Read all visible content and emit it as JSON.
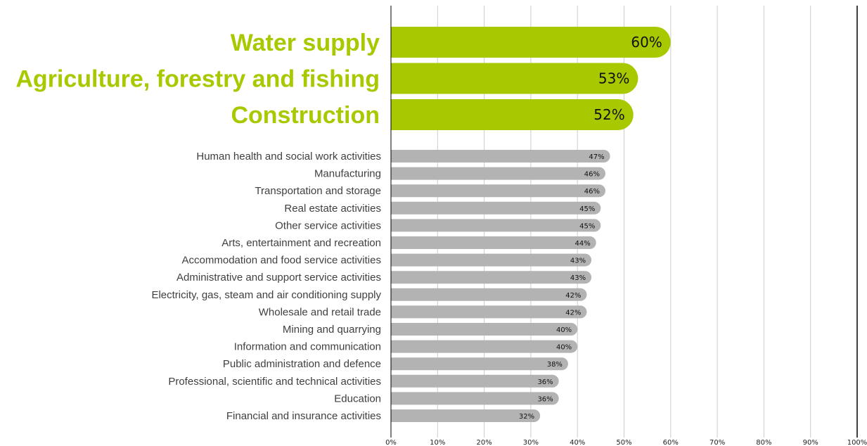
{
  "chart_data": {
    "type": "bar",
    "orientation": "horizontal",
    "x_range": [
      0,
      100
    ],
    "x_unit": "%",
    "grid": true,
    "colors": {
      "highlight": "#a8c800",
      "normal": "#b3b3b3",
      "grid": "#cccccc",
      "axis": "#000000"
    },
    "x_ticks": [
      "0%",
      "10%",
      "20%",
      "30%",
      "40%",
      "50%",
      "60%",
      "70%",
      "80%",
      "90%",
      "100%"
    ],
    "highlighted": [
      {
        "category": "Water supply",
        "value": 60,
        "label": "60%"
      },
      {
        "category": "Agriculture, forestry and fishing",
        "value": 53,
        "label": "53%"
      },
      {
        "category": "Construction",
        "value": 52,
        "label": "52%"
      }
    ],
    "others": [
      {
        "category": "Human health and social work activities",
        "value": 47,
        "label": "47%"
      },
      {
        "category": "Manufacturing",
        "value": 46,
        "label": "46%"
      },
      {
        "category": "Transportation and storage",
        "value": 46,
        "label": "46%"
      },
      {
        "category": "Real estate activities",
        "value": 45,
        "label": "45%"
      },
      {
        "category": "Other service activities",
        "value": 45,
        "label": "45%"
      },
      {
        "category": "Arts, entertainment and recreation",
        "value": 44,
        "label": "44%"
      },
      {
        "category": "Accommodation and food service activities",
        "value": 43,
        "label": "43%"
      },
      {
        "category": "Administrative and support service activities",
        "value": 43,
        "label": "43%"
      },
      {
        "category": "Electricity, gas, steam and air conditioning supply",
        "value": 42,
        "label": "42%"
      },
      {
        "category": "Wholesale and retail trade",
        "value": 42,
        "label": "42%"
      },
      {
        "category": "Mining and quarrying",
        "value": 40,
        "label": "40%"
      },
      {
        "category": "Information and communication",
        "value": 40,
        "label": "40%"
      },
      {
        "category": "Public administration and defence",
        "value": 38,
        "label": "38%"
      },
      {
        "category": "Professional, scientific and technical activities",
        "value": 36,
        "label": "36%"
      },
      {
        "category": "Education",
        "value": 36,
        "label": "36%"
      },
      {
        "category": "Financial and insurance activities",
        "value": 32,
        "label": "32%"
      }
    ]
  }
}
